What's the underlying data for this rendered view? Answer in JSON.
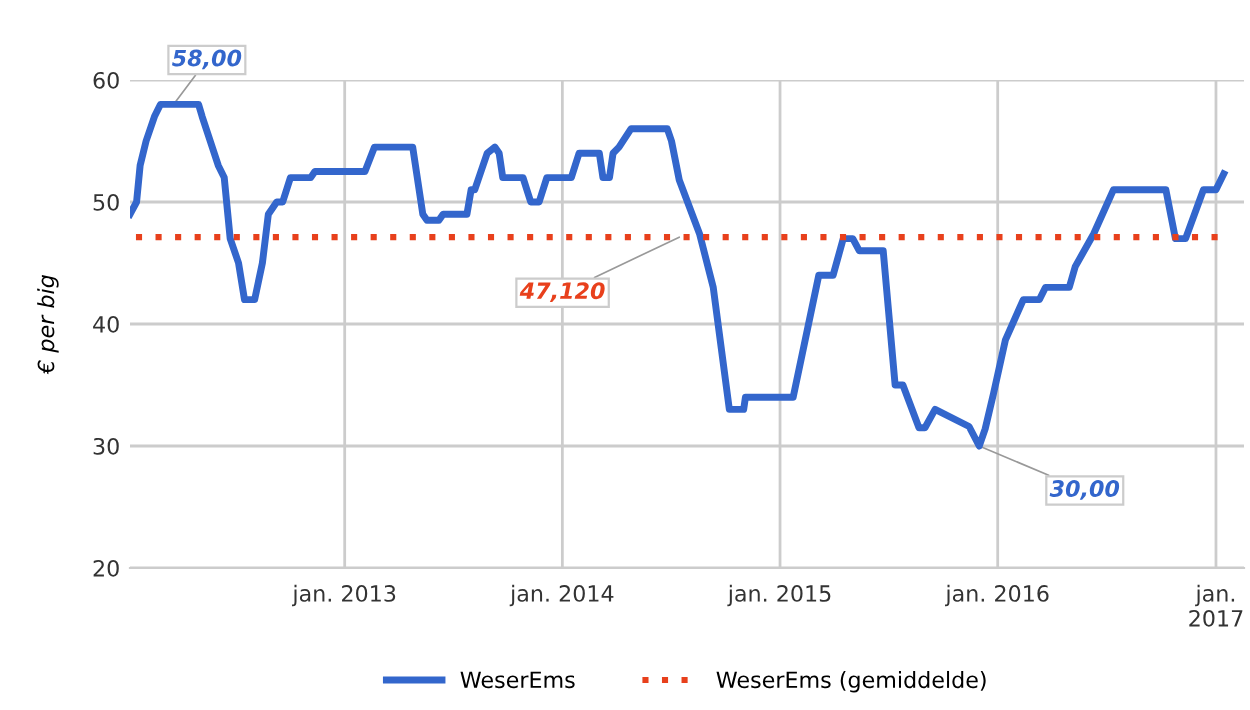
{
  "chart_data": {
    "type": "line",
    "ylabel": "€ per big",
    "xlim": [
      "2012-01-07",
      "2017-02-17"
    ],
    "ylim": [
      20,
      60
    ],
    "yticks": [
      20,
      30,
      40,
      50,
      60
    ],
    "xticks": [
      {
        "value": "2013-01-01",
        "label": "jan. 2013"
      },
      {
        "value": "2014-01-01",
        "label": "jan. 2014"
      },
      {
        "value": "2015-01-01",
        "label": "jan. 2015"
      },
      {
        "value": "2016-01-01",
        "label": "jan. 2016"
      },
      {
        "value": "2017-01-01",
        "label": "jan.\n2017"
      }
    ],
    "grid": true,
    "legend": "bottom",
    "marker": "none",
    "series": [
      {
        "name": "WeserEms",
        "color": "#3366cc",
        "line_style": "solid",
        "x": [
          "2012-01-07",
          "2012-01-18",
          "2012-01-24",
          "2012-02-03",
          "2012-02-17",
          "2012-02-27",
          "2012-05-01",
          "2012-05-07",
          "2012-06-03",
          "2012-06-13",
          "2012-06-23",
          "2012-07-07",
          "2012-07-17",
          "2012-08-03",
          "2012-08-16",
          "2012-08-26",
          "2012-09-09",
          "2012-09-19",
          "2012-10-02",
          "2012-11-05",
          "2012-11-12",
          "2013-02-04",
          "2013-02-20",
          "2013-04-25",
          "2013-05-12",
          "2013-05-19",
          "2013-06-08",
          "2013-06-15",
          "2013-07-25",
          "2013-08-01",
          "2013-08-07",
          "2013-08-28",
          "2013-09-10",
          "2013-09-17",
          "2013-09-23",
          "2013-10-27",
          "2013-11-09",
          "2013-11-23",
          "2013-12-06",
          "2014-01-16",
          "2014-01-29",
          "2014-03-04",
          "2014-03-10",
          "2014-03-21",
          "2014-03-27",
          "2014-04-06",
          "2014-04-26",
          "2014-06-26",
          "2014-07-03",
          "2014-07-16",
          "2014-08-19",
          "2014-09-11",
          "2014-10-08",
          "2014-11-01",
          "2014-11-04",
          "2015-01-23",
          "2015-03-07",
          "2015-03-31",
          "2015-04-17",
          "2015-05-03",
          "2015-05-14",
          "2015-06-23",
          "2015-07-13",
          "2015-07-26",
          "2015-08-22",
          "2015-09-01",
          "2015-09-18",
          "2015-11-14",
          "2015-12-01",
          "2015-12-11",
          "2015-12-25",
          "2016-01-14",
          "2016-02-13",
          "2016-03-11",
          "2016-03-21",
          "2016-04-30",
          "2016-05-10",
          "2016-06-10",
          "2016-07-13",
          "2016-10-09",
          "2016-10-25",
          "2016-11-11",
          "2016-12-11",
          "2017-01-01",
          "2017-01-14"
        ],
        "values": [
          49,
          50,
          53,
          55,
          57,
          58,
          58,
          57,
          53,
          52,
          47,
          45,
          42,
          42,
          45,
          49,
          50,
          50,
          52,
          52,
          52.5,
          52.5,
          54.5,
          54.5,
          49,
          48.5,
          48.5,
          49,
          49,
          51,
          51,
          54,
          54.5,
          54,
          52,
          52,
          50,
          50,
          52,
          52,
          54,
          54,
          52,
          52,
          54,
          54.5,
          56,
          56,
          55,
          51.8,
          47.4,
          43,
          33,
          33,
          34,
          34,
          44,
          44,
          47,
          47,
          46,
          46,
          35,
          35,
          31.5,
          31.5,
          33,
          31.6,
          30,
          31.4,
          34.3,
          38.7,
          42,
          42,
          43,
          43,
          44.7,
          47.4,
          51,
          51,
          47,
          47,
          51,
          51,
          52.3
        ]
      },
      {
        "name": "WeserEms (gemiddelde)",
        "color": "#e8401c",
        "line_style": "dotted",
        "x": [
          "2012-01-17",
          "2017-01-14"
        ],
        "values": [
          47.12,
          47.12
        ]
      }
    ],
    "annotations": [
      {
        "text": "58,00",
        "x": "2012-03-20",
        "y": 58
      },
      {
        "text": "47,120",
        "x": "2014-07-16",
        "y": 47.12
      },
      {
        "text": "30,00",
        "x": "2015-12-01",
        "y": 30
      }
    ]
  }
}
